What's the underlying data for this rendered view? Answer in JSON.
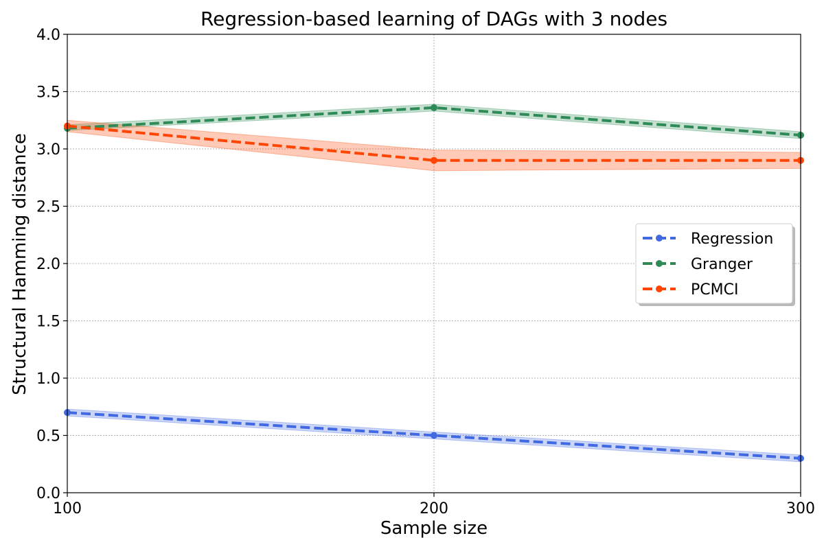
{
  "chart_data": {
    "type": "line",
    "title": "Regression-based learning of DAGs with 3 nodes",
    "xlabel": "Sample size",
    "ylabel": "Structural Hamming distance",
    "x": [
      100,
      200,
      300
    ],
    "xlim": [
      100,
      300
    ],
    "ylim": [
      0.0,
      4.0
    ],
    "xticks": [
      "100",
      "200",
      "300"
    ],
    "yticks": [
      "0.0",
      "0.5",
      "1.0",
      "1.5",
      "2.0",
      "2.5",
      "3.0",
      "3.5",
      "4.0"
    ],
    "grid": true,
    "legend_position": "center-right",
    "series": [
      {
        "name": "Regression",
        "color": "#4169e1",
        "values": [
          0.7,
          0.5,
          0.3
        ],
        "lower": [
          0.67,
          0.47,
          0.27
        ],
        "upper": [
          0.73,
          0.53,
          0.33
        ]
      },
      {
        "name": "Granger",
        "color": "#2e8b57",
        "values": [
          3.18,
          3.36,
          3.12
        ],
        "lower": [
          3.16,
          3.33,
          3.09
        ],
        "upper": [
          3.21,
          3.39,
          3.15
        ]
      },
      {
        "name": "PCMCI",
        "color": "#ff4500",
        "values": [
          3.2,
          2.9,
          2.9
        ],
        "lower": [
          3.15,
          2.81,
          2.83
        ],
        "upper": [
          3.25,
          2.99,
          2.97
        ]
      }
    ]
  }
}
